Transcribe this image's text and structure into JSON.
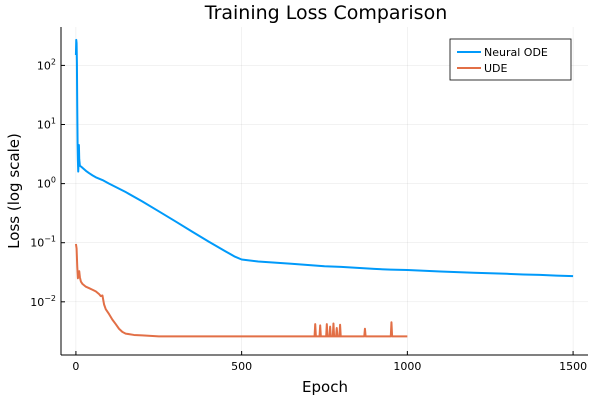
{
  "chart_data": {
    "type": "line",
    "title": "Training Loss Comparison",
    "xlabel": "Epoch",
    "ylabel": "Loss (log scale)",
    "xlim": [
      -45,
      1545
    ],
    "ylim_log10": [
      -2.9,
      2.65
    ],
    "yscale": "log",
    "xticks": [
      0,
      500,
      1000,
      1500
    ],
    "yticks": [
      {
        "exp": -2,
        "base": "10",
        "sup": "−2"
      },
      {
        "exp": -1,
        "base": "10",
        "sup": "−1"
      },
      {
        "exp": 0,
        "base": "10",
        "sup": "0"
      },
      {
        "exp": 1,
        "base": "10",
        "sup": "1"
      },
      {
        "exp": 2,
        "base": "10",
        "sup": "2"
      }
    ],
    "grid": true,
    "legend_position": "top-right",
    "series": [
      {
        "name": "Neural ODE",
        "color": "#009AFA",
        "points": [
          [
            0,
            150
          ],
          [
            1,
            270
          ],
          [
            2,
            240
          ],
          [
            3,
            110
          ],
          [
            4,
            20
          ],
          [
            5,
            5.0
          ],
          [
            6,
            2.5
          ],
          [
            7,
            1.6
          ],
          [
            8,
            2.2
          ],
          [
            9,
            4.5
          ],
          [
            10,
            2.6
          ],
          [
            12,
            2.0
          ],
          [
            15,
            1.95
          ],
          [
            20,
            1.85
          ],
          [
            30,
            1.65
          ],
          [
            40,
            1.5
          ],
          [
            50,
            1.38
          ],
          [
            60,
            1.28
          ],
          [
            80,
            1.15
          ],
          [
            100,
            1.0
          ],
          [
            150,
            0.72
          ],
          [
            200,
            0.5
          ],
          [
            250,
            0.34
          ],
          [
            300,
            0.23
          ],
          [
            350,
            0.155
          ],
          [
            400,
            0.105
          ],
          [
            450,
            0.072
          ],
          [
            480,
            0.058
          ],
          [
            500,
            0.052
          ],
          [
            550,
            0.048
          ],
          [
            600,
            0.046
          ],
          [
            650,
            0.044
          ],
          [
            700,
            0.042
          ],
          [
            750,
            0.04
          ],
          [
            800,
            0.039
          ],
          [
            850,
            0.0375
          ],
          [
            900,
            0.036
          ],
          [
            950,
            0.035
          ],
          [
            1000,
            0.0345
          ],
          [
            1050,
            0.0335
          ],
          [
            1100,
            0.0325
          ],
          [
            1150,
            0.0318
          ],
          [
            1200,
            0.031
          ],
          [
            1250,
            0.0305
          ],
          [
            1300,
            0.0298
          ],
          [
            1350,
            0.029
          ],
          [
            1400,
            0.0285
          ],
          [
            1450,
            0.0278
          ],
          [
            1500,
            0.0272
          ]
        ]
      },
      {
        "name": "UDE",
        "color": "#E26F46",
        "points": [
          [
            0,
            0.095
          ],
          [
            2,
            0.08
          ],
          [
            4,
            0.04
          ],
          [
            6,
            0.025
          ],
          [
            8,
            0.03
          ],
          [
            10,
            0.033
          ],
          [
            12,
            0.026
          ],
          [
            15,
            0.022
          ],
          [
            20,
            0.02
          ],
          [
            30,
            0.018
          ],
          [
            40,
            0.017
          ],
          [
            50,
            0.016
          ],
          [
            60,
            0.015
          ],
          [
            70,
            0.0135
          ],
          [
            75,
            0.0125
          ],
          [
            80,
            0.0128
          ],
          [
            85,
            0.009
          ],
          [
            90,
            0.0075
          ],
          [
            100,
            0.0062
          ],
          [
            110,
            0.005
          ],
          [
            120,
            0.0042
          ],
          [
            130,
            0.0035
          ],
          [
            140,
            0.0031
          ],
          [
            150,
            0.0029
          ],
          [
            175,
            0.00275
          ],
          [
            200,
            0.0027
          ],
          [
            250,
            0.0026
          ],
          [
            300,
            0.0026
          ],
          [
            400,
            0.0026
          ],
          [
            500,
            0.0026
          ],
          [
            600,
            0.0026
          ],
          [
            700,
            0.0026
          ],
          [
            720,
            0.0026
          ],
          [
            722,
            0.0042
          ],
          [
            724,
            0.0026
          ],
          [
            735,
            0.0026
          ],
          [
            737,
            0.004
          ],
          [
            739,
            0.0026
          ],
          [
            755,
            0.0026
          ],
          [
            757,
            0.0042
          ],
          [
            759,
            0.0026
          ],
          [
            765,
            0.0026
          ],
          [
            767,
            0.0038
          ],
          [
            769,
            0.0026
          ],
          [
            775,
            0.0026
          ],
          [
            777,
            0.0043
          ],
          [
            779,
            0.0026
          ],
          [
            785,
            0.0026
          ],
          [
            787,
            0.0036
          ],
          [
            789,
            0.0026
          ],
          [
            795,
            0.0026
          ],
          [
            797,
            0.0041
          ],
          [
            799,
            0.0026
          ],
          [
            870,
            0.0026
          ],
          [
            872,
            0.0035
          ],
          [
            874,
            0.0026
          ],
          [
            950,
            0.0026
          ],
          [
            952,
            0.0045
          ],
          [
            954,
            0.0026
          ],
          [
            1000,
            0.0026
          ]
        ]
      }
    ]
  }
}
